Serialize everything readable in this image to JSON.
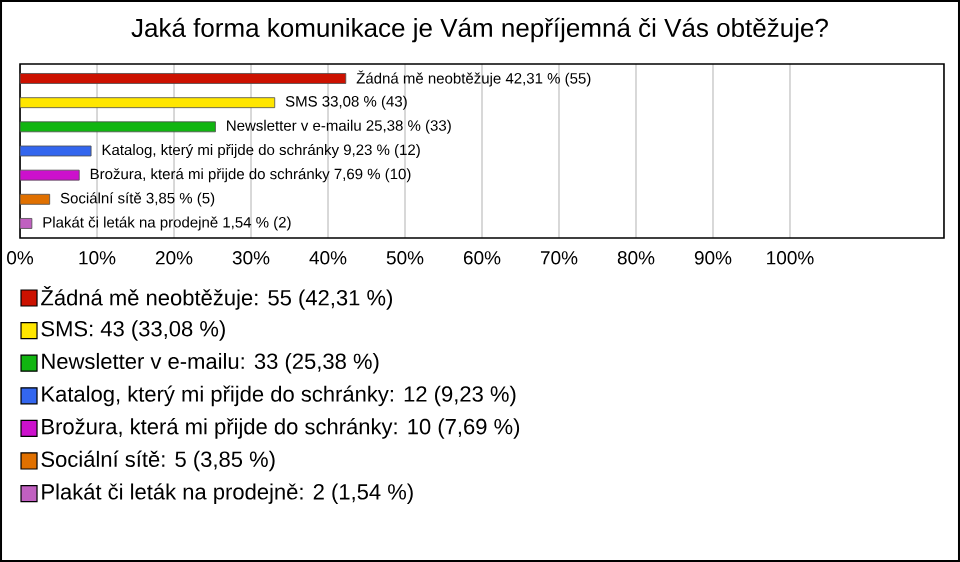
{
  "chart_data": {
    "type": "bar",
    "orientation": "horizontal",
    "title": "Jaká forma komunikace je Vám nepříjemná či Vás obtěžuje?",
    "categories": [
      null,
      null,
      null,
      null,
      null,
      null,
      null
    ],
    "values": [
      42.31,
      33.08,
      25.38,
      9.23,
      7.69,
      3.85,
      1.54
    ],
    "value_labels": [
      "Žádná mě neobtěžuje 42,31 % (55)",
      "SMS 33,08 % (43)",
      "Newsletter v e-mailu 25,38 % (33)",
      "Katalog, který mi přijde do schránky 9,23 % (12)",
      "Brožura, která mi přijde do schránky 7,69 % (10)",
      "Sociální sítě 3,85 % (5)",
      "Plakát či leták na prodejně 1,54 % (2)"
    ],
    "colors": [
      "#cc1100",
      "#ffe600",
      "#11b511",
      "#3366ee",
      "#cc11cc",
      "#e07000",
      "#c060c0"
    ],
    "xlim": [
      0,
      120
    ],
    "xticks": [
      {
        "value": 0,
        "label": "0%"
      },
      {
        "value": 10,
        "label": "10%"
      },
      {
        "value": 20,
        "label": "20%"
      },
      {
        "value": 30,
        "label": "30%"
      },
      {
        "value": 40,
        "label": "40%"
      },
      {
        "value": 50,
        "label": "50%"
      },
      {
        "value": 60,
        "label": "60%"
      },
      {
        "value": 70,
        "label": "70%"
      },
      {
        "value": 80,
        "label": "80%"
      },
      {
        "value": 90,
        "label": "90%"
      },
      {
        "value": 100,
        "label": "100%"
      }
    ],
    "grid": "x",
    "tick_labels": "x",
    "annotations": [
      "Žádná mě neobtěžuje: 55 (42,31 %)",
      "SMS: 43 (33,08 %)",
      "Newsletter v e-mailu: 33 (25,38 %)",
      "Katalog, který mi přijde do schránky: 12 (9,23 %)",
      "Brožura, která mi přijde do schránky: 10 (7,69 %)",
      "Sociální sítě: 5 (3,85 %)",
      "Plakát či leták na prodejně: 2 (1,54 %)"
    ]
  }
}
